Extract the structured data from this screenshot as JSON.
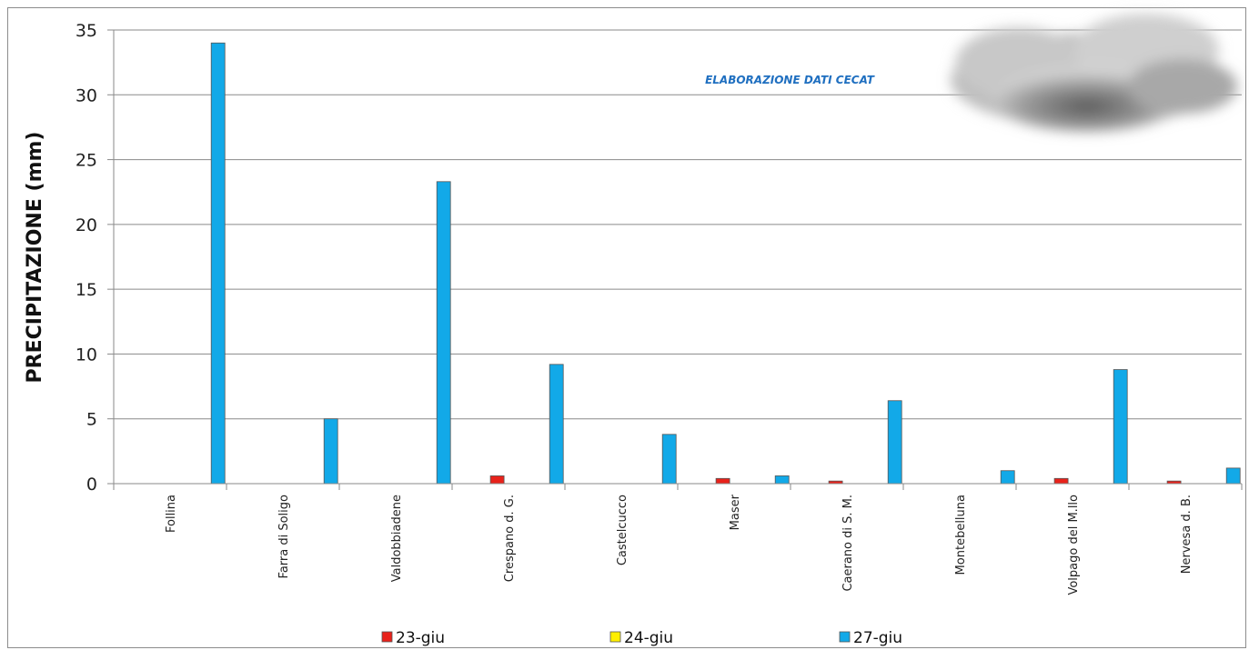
{
  "chart_data": {
    "type": "bar",
    "ylabel": "PRECIPITAZIONE (mm)",
    "xlabel": "",
    "ylim": [
      0,
      35
    ],
    "yticks": [
      "0",
      "5",
      "10",
      "15",
      "20",
      "25",
      "30",
      "35"
    ],
    "grid": "horizontal",
    "legend_position": "bottom",
    "annotation": "ELABORAZIONE DATI CECAT",
    "categories": [
      "Follina",
      "Farra di Soligo",
      "Valdobbiadene",
      "Crespano d. G.",
      "Castelcucco",
      "Maser",
      "Caerano di S. M.",
      "Montebelluna",
      "Volpago del M.llo",
      "Nervesa d. B."
    ],
    "series": [
      {
        "name": "23-giu",
        "color": "#e8221b",
        "values": [
          0,
          0,
          0,
          0.6,
          0,
          0.4,
          0.2,
          0,
          0.4,
          0.2
        ]
      },
      {
        "name": "24-giu",
        "color": "#ffef00",
        "values": [
          0,
          0,
          0,
          0,
          0,
          0,
          0,
          0,
          0,
          0
        ]
      },
      {
        "name": "27-giu",
        "color": "#12a9e8",
        "values": [
          34.0,
          5.0,
          23.3,
          9.2,
          3.8,
          0.6,
          6.4,
          1.0,
          8.8,
          1.2
        ]
      }
    ]
  }
}
